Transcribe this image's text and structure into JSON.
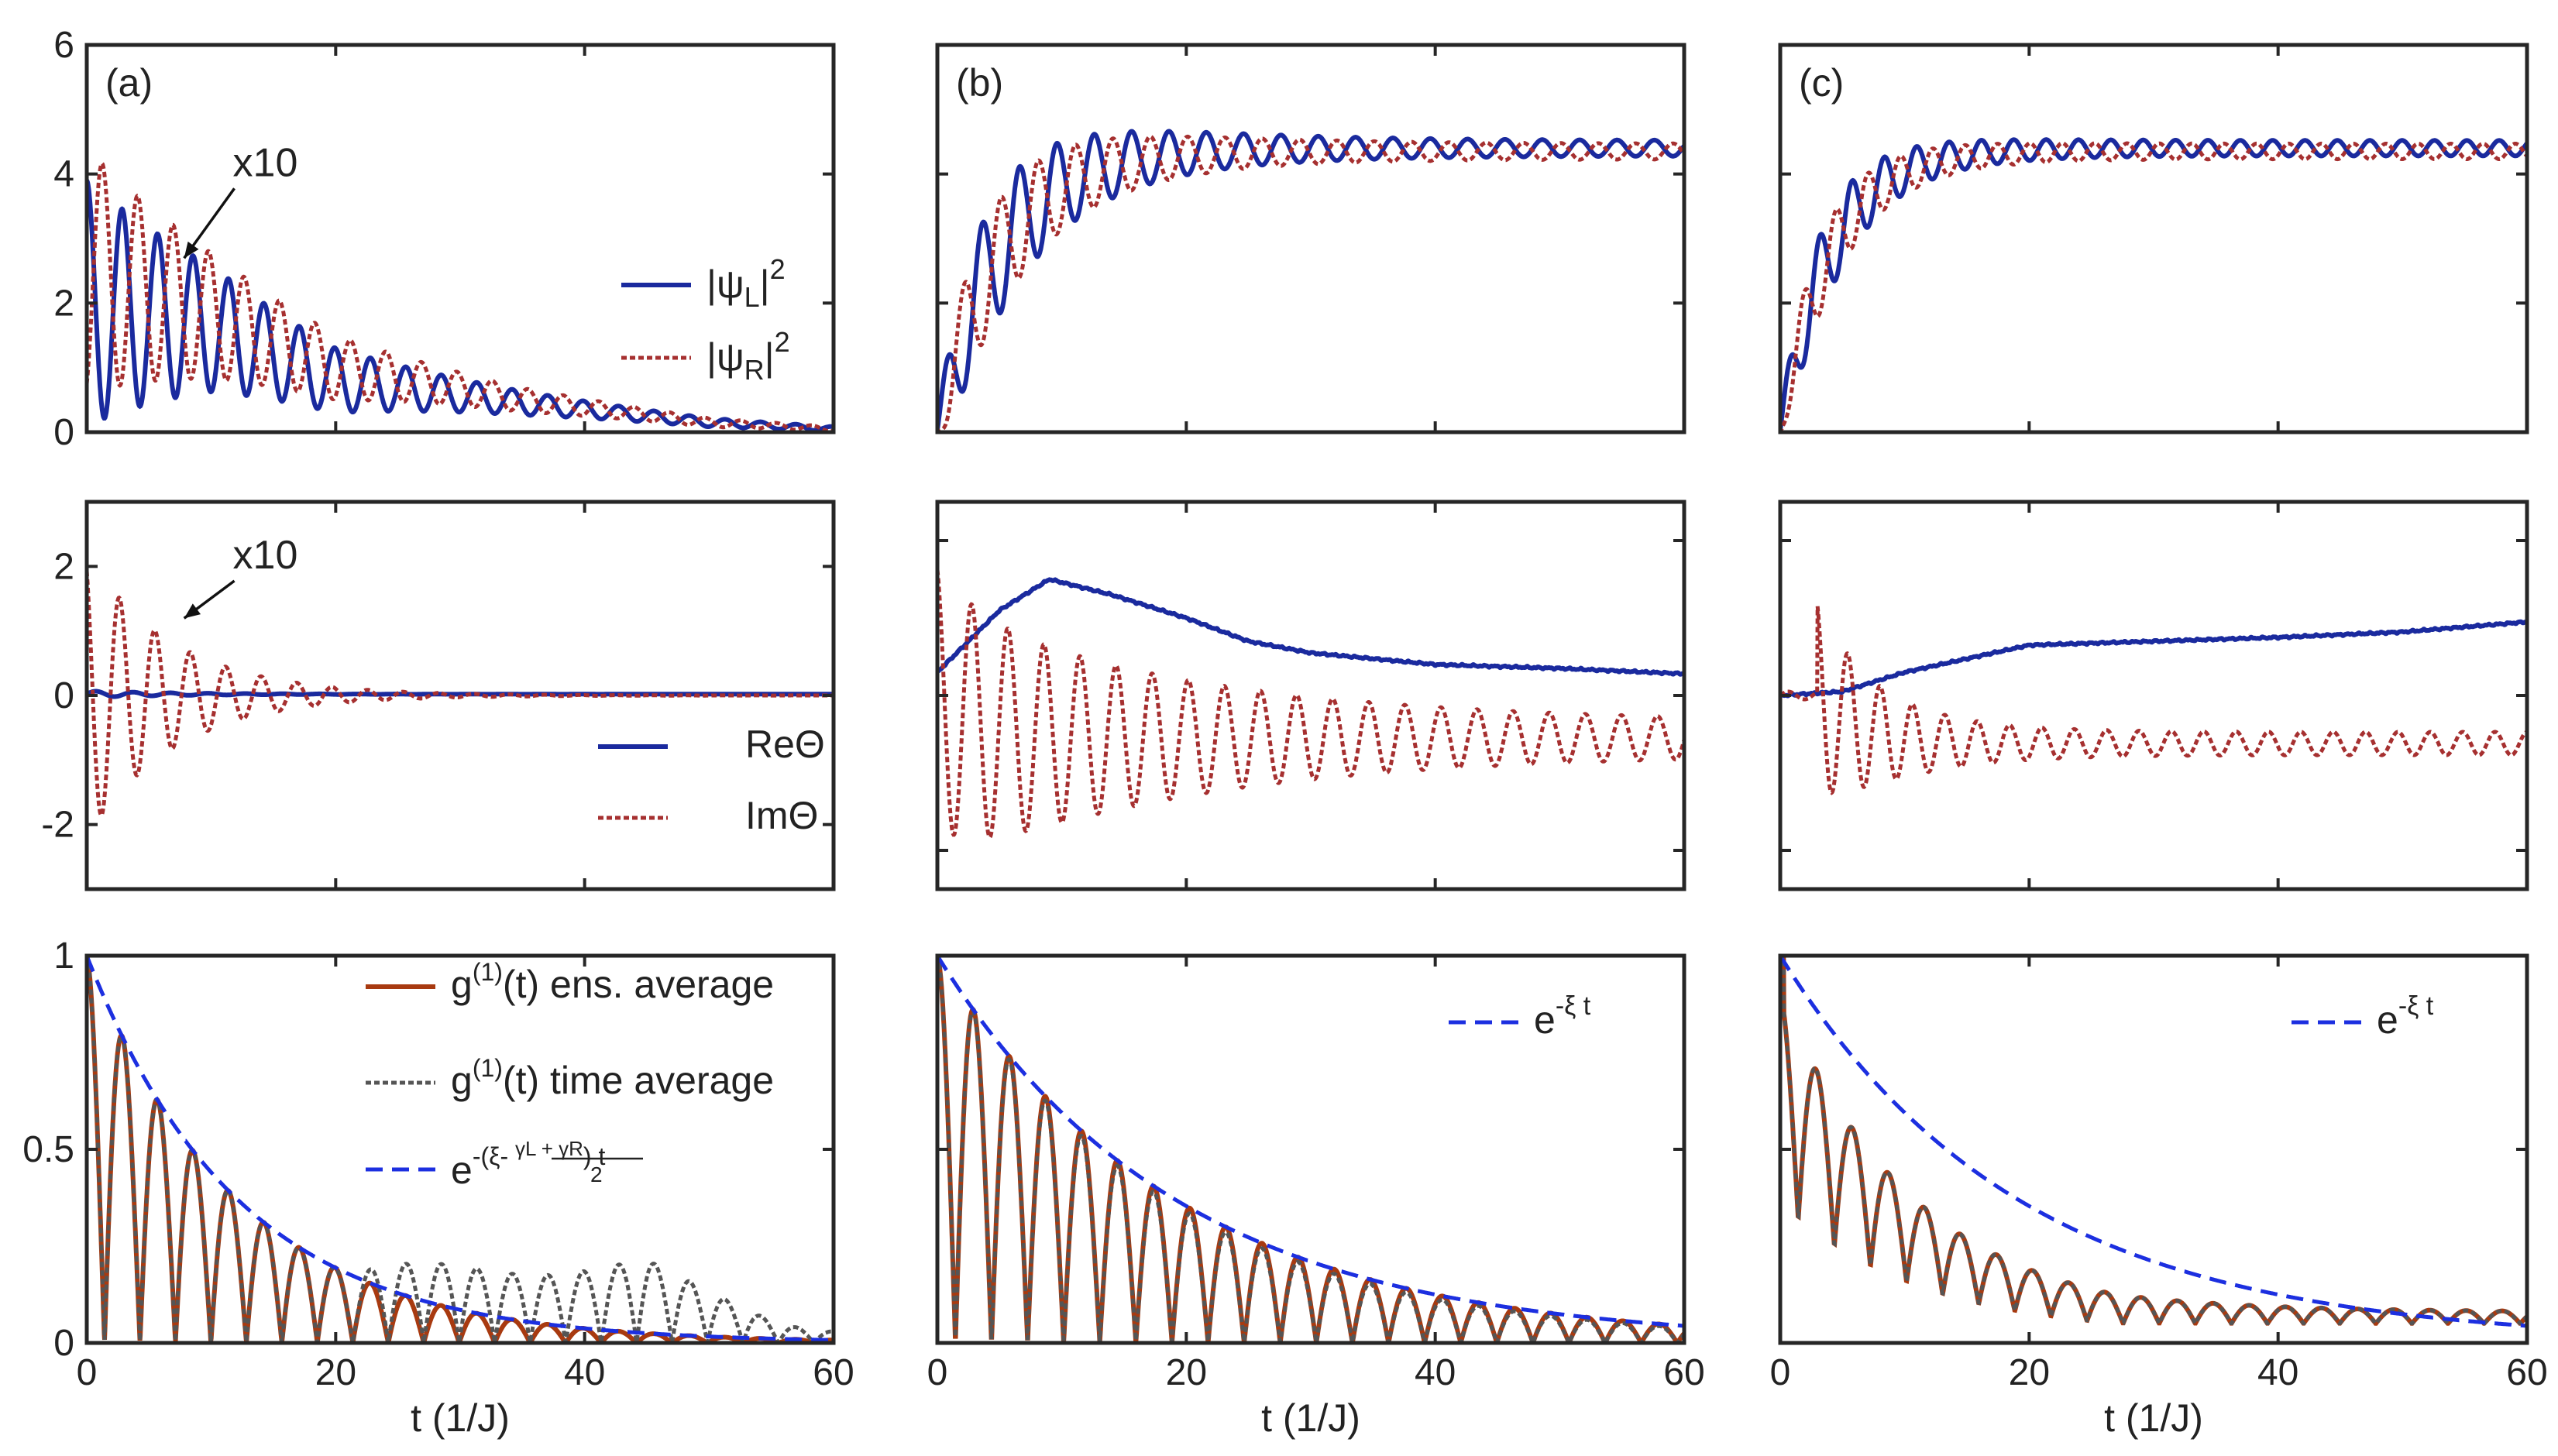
{
  "chart_data": [
    {
      "id": "a1",
      "type": "line",
      "panel_label": "(a)",
      "xlim": [
        0,
        60
      ],
      "ylim": [
        0,
        6
      ],
      "xticks": [
        0,
        20,
        40,
        60
      ],
      "xtick_labels": [
        "",
        "",
        "",
        ""
      ],
      "yticks": [
        0,
        2,
        4,
        6
      ],
      "ytick_labels": [
        "0",
        "2",
        "4",
        "6"
      ],
      "xlabel": "",
      "annotation": {
        "text": "x10",
        "x": 8,
        "y": 3.8,
        "arrow_to": [
          7.2,
          2.6
        ]
      },
      "legend": {
        "position": "right",
        "entries": [
          {
            "label": "|ψL|²",
            "ref": 0
          },
          {
            "label": "|ψR|²",
            "ref": 1
          }
        ]
      },
      "series": [
        {
          "color": "#1a2a9e",
          "style": "solid",
          "kind": "osc",
          "A": 1.9,
          "tau": 15,
          "base": [
            [
              0,
              2.0
            ],
            [
              10,
              1.6
            ],
            [
              20,
              0.8
            ],
            [
              35,
              0.45
            ],
            [
              50,
              0.15
            ],
            [
              60,
              0.05
            ]
          ],
          "period": 2.85,
          "phase": 0,
          "env": 1
        },
        {
          "color": "#a63030",
          "style": "dotted",
          "kind": "osc",
          "A": -1.9,
          "tau": 15,
          "base": [
            [
              0,
              2.5
            ],
            [
              10,
              1.8
            ],
            [
              20,
              1.0
            ],
            [
              35,
              0.5
            ],
            [
              50,
              0.15
            ],
            [
              60,
              0.05
            ]
          ],
          "period": 2.85,
          "phase": 0.4,
          "env": 1
        }
      ]
    },
    {
      "id": "b1",
      "type": "line",
      "panel_label": "(b)",
      "xlim": [
        0,
        60
      ],
      "ylim": [
        0,
        6
      ],
      "xticks": [
        0,
        20,
        40,
        60
      ],
      "xtick_labels": [
        "",
        "",
        "",
        ""
      ],
      "yticks": [
        0,
        2,
        4,
        6
      ],
      "ytick_labels": [
        "",
        "",
        "",
        ""
      ],
      "xlabel": "",
      "series": [
        {
          "color": "#1a2a9e",
          "style": "solid",
          "kind": "rise",
          "final": 4.4,
          "trise": 5,
          "A": 1.6,
          "tau": 10,
          "period": 3.0,
          "phase": 0.3
        },
        {
          "color": "#a63030",
          "style": "dotted",
          "kind": "rise",
          "final": 4.35,
          "trise": 5,
          "A": -1.4,
          "tau": 10,
          "period": 3.0,
          "phase": 0.3
        }
      ]
    },
    {
      "id": "c1",
      "type": "line",
      "panel_label": "(c)",
      "xlim": [
        0,
        60
      ],
      "ylim": [
        0,
        6
      ],
      "xticks": [
        0,
        20,
        40,
        60
      ],
      "xtick_labels": [
        "",
        "",
        "",
        ""
      ],
      "yticks": [
        0,
        2,
        4,
        6
      ],
      "ytick_labels": [
        "",
        "",
        "",
        ""
      ],
      "xlabel": "",
      "series": [
        {
          "color": "#1a2a9e",
          "style": "solid",
          "kind": "rise",
          "final": 4.4,
          "trise": 4,
          "A": 1.2,
          "tau": 6,
          "period": 2.6,
          "phase": 0.2
        },
        {
          "color": "#a63030",
          "style": "dotted",
          "kind": "rise",
          "final": 4.35,
          "trise": 4,
          "A": -1.0,
          "tau": 6,
          "period": 2.6,
          "phase": 0.2
        }
      ]
    },
    {
      "id": "a2",
      "type": "line",
      "panel_label": "",
      "xlim": [
        0,
        60
      ],
      "ylim": [
        -3,
        3
      ],
      "xticks": [
        0,
        20,
        40,
        60
      ],
      "xtick_labels": [
        "",
        "",
        "",
        ""
      ],
      "yticks": [
        -2,
        0,
        2
      ],
      "ytick_labels": [
        "-2",
        "0",
        "2"
      ],
      "xlabel": "",
      "annotation": {
        "text": "x10",
        "x": 8,
        "y": 1.8,
        "arrow_to": [
          7.2,
          1.1
        ]
      },
      "legend": {
        "position": "right",
        "entries": [
          {
            "label": "ReΘ",
            "ref": 0
          },
          {
            "label": "ImΘ",
            "ref": 1
          }
        ]
      },
      "series": [
        {
          "color": "#1a2a9e",
          "style": "solid",
          "kind": "flat",
          "value": 0.02,
          "A": 0.05,
          "tau": 8,
          "period": 3.0
        },
        {
          "color": "#a63030",
          "style": "dotted",
          "kind": "osc0",
          "A": 2.2,
          "tau": 7,
          "center": 0,
          "period": 2.85,
          "phase": 0.5
        }
      ]
    },
    {
      "id": "b2",
      "type": "line",
      "panel_label": "",
      "xlim": [
        0,
        60
      ],
      "ylim": [
        -2.5,
        2.5
      ],
      "xticks": [
        0,
        20,
        40,
        60
      ],
      "xtick_labels": [
        "",
        "",
        "",
        ""
      ],
      "yticks": [
        -2,
        0,
        2
      ],
      "ytick_labels": [
        "",
        "",
        "",
        ""
      ],
      "xlabel": "",
      "series": [
        {
          "color": "#1a2a9e",
          "style": "solid",
          "kind": "pts",
          "pts": [
            [
              0,
              0.3
            ],
            [
              5,
              1.1
            ],
            [
              9,
              1.5
            ],
            [
              14,
              1.3
            ],
            [
              20,
              1.0
            ],
            [
              25,
              0.7
            ],
            [
              30,
              0.55
            ],
            [
              40,
              0.4
            ],
            [
              50,
              0.35
            ],
            [
              60,
              0.28
            ]
          ]
        },
        {
          "color": "#a63030",
          "style": "dotted",
          "kind": "osc0",
          "A": 1.5,
          "tau": 20,
          "center": -0.55,
          "period": 2.9,
          "phase": 0.3,
          "tail": 0.2
        }
      ]
    },
    {
      "id": "c2",
      "type": "line",
      "panel_label": "",
      "xlim": [
        0,
        60
      ],
      "ylim": [
        -2.5,
        2.5
      ],
      "xticks": [
        0,
        20,
        40,
        60
      ],
      "xtick_labels": [
        "",
        "",
        "",
        ""
      ],
      "yticks": [
        -2,
        0,
        2
      ],
      "ytick_labels": [
        "",
        "",
        "",
        ""
      ],
      "xlabel": "",
      "series": [
        {
          "color": "#1a2a9e",
          "style": "solid",
          "kind": "pts",
          "pts": [
            [
              0,
              0.0
            ],
            [
              5,
              0.05
            ],
            [
              10,
              0.3
            ],
            [
              20,
              0.65
            ],
            [
              30,
              0.7
            ],
            [
              40,
              0.75
            ],
            [
              50,
              0.82
            ],
            [
              60,
              0.95
            ]
          ]
        },
        {
          "color": "#a63030",
          "style": "dotted",
          "kind": "osc0",
          "A": 1.1,
          "tau": 6,
          "center": -0.62,
          "period": 2.6,
          "phase": 0.4,
          "tail": 0.15,
          "start": 3
        }
      ]
    },
    {
      "id": "a3",
      "type": "line",
      "panel_label": "",
      "xlim": [
        0,
        60
      ],
      "ylim": [
        0,
        1
      ],
      "xticks": [
        0,
        20,
        40,
        60
      ],
      "xtick_labels": [
        "0",
        "20",
        "40",
        "60"
      ],
      "yticks": [
        0,
        0.5,
        1
      ],
      "ytick_labels": [
        "0",
        "0.5",
        "1"
      ],
      "xlabel": "t (1/J)",
      "legend": {
        "position": "top-right",
        "entries": [
          {
            "label": "g⁽¹⁾(t) ens. average",
            "ref": 0
          },
          {
            "label": "g⁽¹⁾(t) time average",
            "ref": 1
          },
          {
            "label": "e^-(ξ- (γL + γR)/2) t",
            "ref": 2
          }
        ]
      },
      "series": [
        {
          "color": "#a83a10",
          "style": "solid",
          "kind": "g1",
          "xi": 0.082,
          "period": 2.85
        },
        {
          "color": "#555555",
          "style": "dotted",
          "kind": "g1t",
          "xi": 0.082,
          "period": 2.85,
          "floor": 0.2
        },
        {
          "color": "#1c2fe0",
          "style": "dashed",
          "kind": "exp",
          "xi": 0.082
        }
      ]
    },
    {
      "id": "b3",
      "type": "line",
      "panel_label": "",
      "xlim": [
        0,
        60
      ],
      "ylim": [
        0,
        1
      ],
      "xticks": [
        0,
        20,
        40,
        60
      ],
      "xtick_labels": [
        "0",
        "20",
        "40",
        "60"
      ],
      "yticks": [
        0,
        0.5,
        1
      ],
      "ytick_labels": [
        "",
        "",
        ""
      ],
      "xlabel": "t (1/J)",
      "legend": {
        "position": "top-right",
        "entries": [
          {
            "label": "e^-ξ t",
            "ref": 2
          }
        ]
      },
      "series": [
        {
          "color": "#a83a10",
          "style": "solid",
          "kind": "g1",
          "xi": 0.052,
          "period": 2.9
        },
        {
          "color": "#555555",
          "style": "dotted",
          "kind": "g1",
          "xi": 0.054,
          "period": 2.9
        },
        {
          "color": "#1c2fe0",
          "style": "dashed",
          "kind": "exp",
          "xi": 0.052
        }
      ]
    },
    {
      "id": "c3",
      "type": "line",
      "panel_label": "",
      "xlim": [
        0,
        60
      ],
      "ylim": [
        0,
        1
      ],
      "xticks": [
        0,
        20,
        40,
        60
      ],
      "xtick_labels": [
        "0",
        "20",
        "40",
        "60"
      ],
      "yticks": [
        0,
        0.5,
        1
      ],
      "ytick_labels": [
        "",
        "",
        ""
      ],
      "xlabel": "t (1/J)",
      "legend": {
        "position": "top-right",
        "entries": [
          {
            "label": "e^-ξ t",
            "ref": 2
          }
        ]
      },
      "series": [
        {
          "color": "#a83a10",
          "style": "solid",
          "kind": "g1c",
          "xi": 0.052,
          "period": 2.9
        },
        {
          "color": "#555555",
          "style": "dotted",
          "kind": "g1c",
          "xi": 0.05,
          "period": 2.9
        },
        {
          "color": "#1c2fe0",
          "style": "dashed",
          "kind": "exp",
          "xi": 0.052
        }
      ]
    }
  ]
}
